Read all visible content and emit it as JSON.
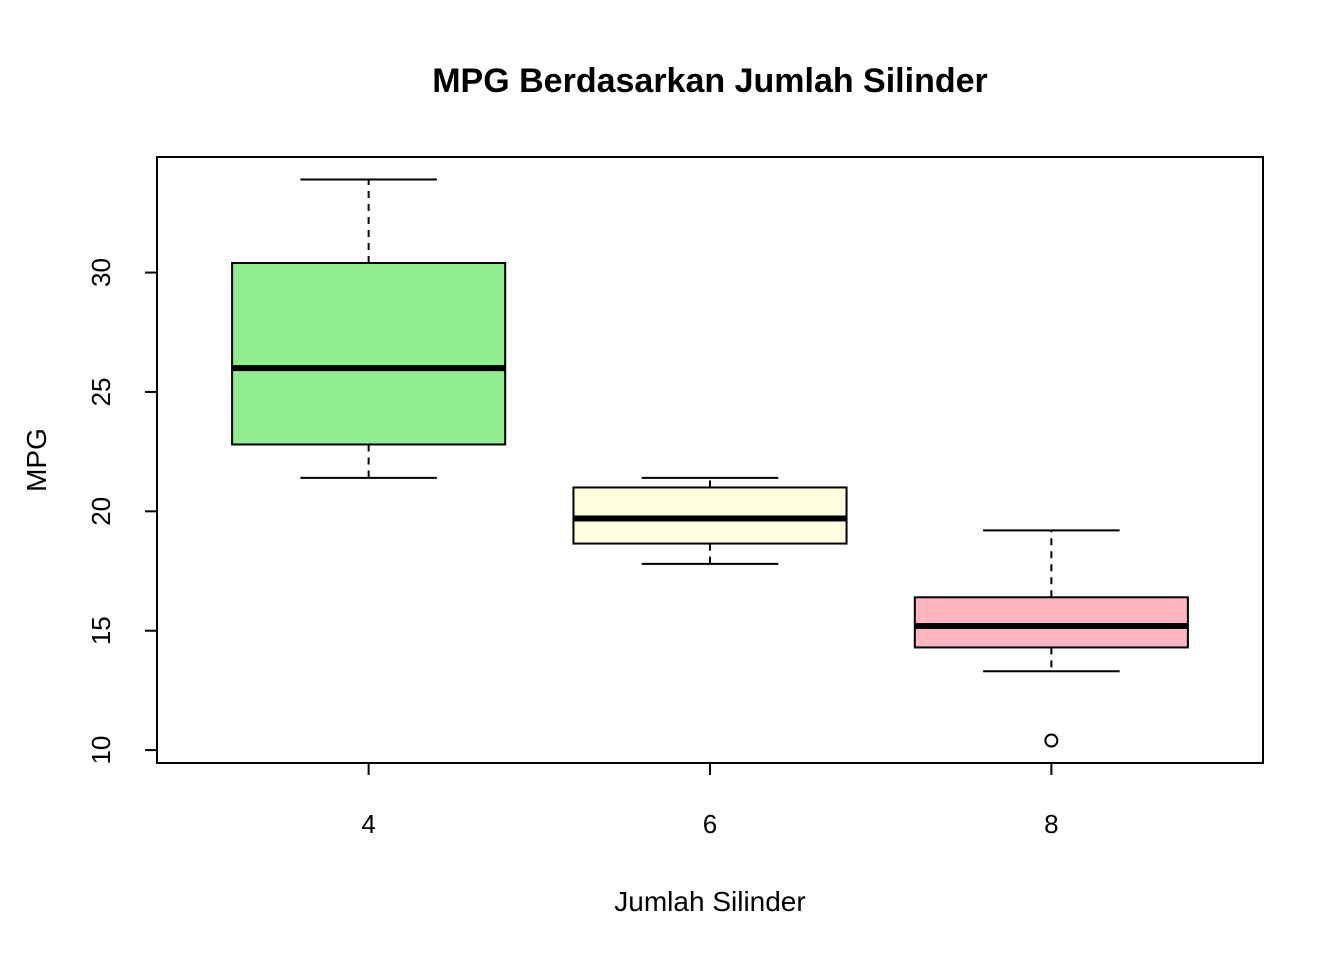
{
  "chart_data": {
    "type": "boxplot",
    "title": "MPG Berdasarkan Jumlah Silinder",
    "x_label": "Jumlah Silinder",
    "y_label": "MPG",
    "categories": [
      "4",
      "6",
      "8"
    ],
    "colors": [
      "#90EE90",
      "#FFFFE0",
      "#FFB6C1"
    ],
    "boxes": [
      {
        "min": 21.4,
        "q1": 22.8,
        "median": 26.0,
        "q3": 30.4,
        "max": 33.9,
        "outliers": []
      },
      {
        "min": 17.8,
        "q1": 18.65,
        "median": 19.7,
        "q3": 21.0,
        "max": 21.4,
        "outliers": []
      },
      {
        "min": 13.3,
        "q1": 14.3,
        "median": 15.2,
        "q3": 16.4,
        "max": 19.2,
        "outliers": [
          10.4
        ]
      }
    ],
    "ylim": [
      9.46,
      34.84
    ],
    "yticks": [
      10,
      15,
      20,
      25,
      30
    ]
  }
}
